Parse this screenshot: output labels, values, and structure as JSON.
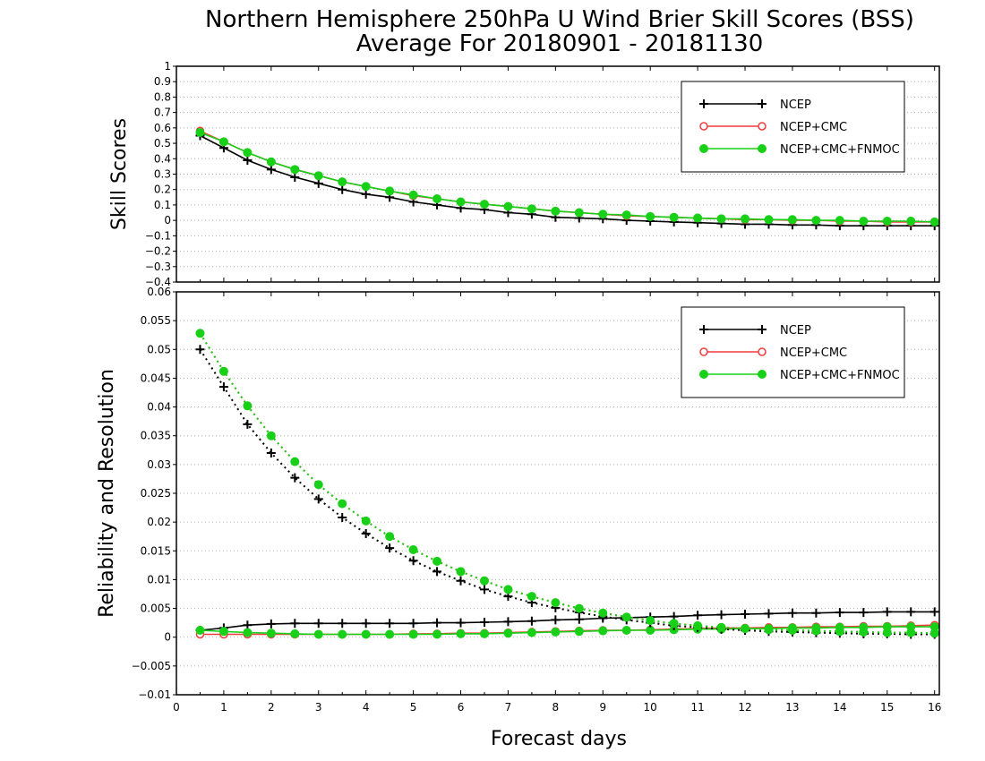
{
  "chart_data": {
    "type": "line",
    "title": "Northern Hemisphere 250hPa U Wind Brier Skill Scores (BSS)",
    "subtitle": "Average For 20180901 - 20181130",
    "xlabel": "Forecast days",
    "xlim": [
      0,
      16.1
    ],
    "xticks": [
      "0",
      "1",
      "2",
      "3",
      "4",
      "5",
      "6",
      "7",
      "8",
      "9",
      "10",
      "11",
      "12",
      "13",
      "14",
      "15",
      "16"
    ],
    "x": [
      0.5,
      1,
      1.5,
      2,
      2.5,
      3,
      3.5,
      4,
      4.5,
      5,
      5.5,
      6,
      6.5,
      7,
      7.5,
      8,
      8.5,
      9,
      9.5,
      10,
      10.5,
      11,
      11.5,
      12,
      12.5,
      13,
      13.5,
      14,
      14.5,
      15,
      15.5,
      16
    ],
    "colors": {
      "NCEP": "#000000",
      "NCEP+CMC": "#f03c3c",
      "NCEP+CMC+FNMOC": "#18d018"
    },
    "panels": [
      {
        "ylabel": "Skill Scores",
        "ylim": [
          -0.4,
          1
        ],
        "yticks": [
          "1",
          "0.9",
          "0.8",
          "0.7",
          "0.6",
          "0.5",
          "0.4",
          "0.3",
          "0.2",
          "0.1",
          "0",
          "−0.1",
          "−0.2",
          "−0.3",
          "−0.4"
        ],
        "grid": true,
        "legend_position": "top-right",
        "legend": [
          "NCEP",
          "NCEP+CMC",
          "NCEP+CMC+FNMOC"
        ],
        "series": [
          {
            "name": "NCEP",
            "marker": "plus",
            "style": "solid",
            "values": [
              0.55,
              0.47,
              0.39,
              0.33,
              0.28,
              0.24,
              0.2,
              0.17,
              0.15,
              0.12,
              0.1,
              0.08,
              0.07,
              0.05,
              0.04,
              0.02,
              0.015,
              0.01,
              0.0,
              -0.005,
              -0.01,
              -0.015,
              -0.02,
              -0.025,
              -0.025,
              -0.03,
              -0.03,
              -0.035,
              -0.035,
              -0.035,
              -0.035,
              -0.035
            ]
          },
          {
            "name": "NCEP+CMC",
            "marker": "circle-open",
            "style": "solid",
            "values": [
              0.58,
              0.51,
              0.44,
              0.38,
              0.33,
              0.29,
              0.25,
              0.22,
              0.19,
              0.16,
              0.14,
              0.12,
              0.105,
              0.09,
              0.075,
              0.06,
              0.05,
              0.04,
              0.03,
              0.025,
              0.02,
              0.015,
              0.01,
              0.005,
              0.005,
              0.0,
              0.0,
              -0.005,
              -0.005,
              -0.01,
              -0.01,
              -0.01
            ]
          },
          {
            "name": "NCEP+CMC+FNMOC",
            "marker": "circle-filled",
            "style": "solid",
            "values": [
              0.57,
              0.51,
              0.44,
              0.38,
              0.33,
              0.29,
              0.25,
              0.22,
              0.19,
              0.165,
              0.14,
              0.12,
              0.105,
              0.09,
              0.075,
              0.06,
              0.05,
              0.04,
              0.035,
              0.025,
              0.02,
              0.015,
              0.01,
              0.01,
              0.005,
              0.005,
              0.0,
              0.0,
              -0.005,
              -0.005,
              -0.005,
              -0.01
            ]
          }
        ]
      },
      {
        "ylabel": "Reliability and Resolution",
        "ylim": [
          -0.01,
          0.06
        ],
        "yticks": [
          "0.06",
          "0.055",
          "0.05",
          "0.045",
          "0.04",
          "0.035",
          "0.03",
          "0.025",
          "0.02",
          "0.015",
          "0.01",
          "0.005",
          "0",
          "−0.005",
          "−0.01"
        ],
        "grid": true,
        "legend_position": "top-right",
        "legend": [
          "NCEP",
          "NCEP+CMC",
          "NCEP+CMC+FNMOC"
        ],
        "series": [
          {
            "name": "NCEP",
            "marker": "plus",
            "style": "solid",
            "measure": "reliability",
            "values": [
              0.0012,
              0.0016,
              0.0021,
              0.0023,
              0.0024,
              0.0024,
              0.0024,
              0.0024,
              0.0024,
              0.0024,
              0.0025,
              0.0025,
              0.0026,
              0.0027,
              0.0028,
              0.003,
              0.0031,
              0.0033,
              0.0034,
              0.0035,
              0.0036,
              0.0038,
              0.0039,
              0.004,
              0.0041,
              0.0042,
              0.0042,
              0.0043,
              0.0043,
              0.0044,
              0.0044,
              0.0044
            ]
          },
          {
            "name": "NCEP+CMC",
            "marker": "circle-open",
            "style": "solid",
            "measure": "reliability",
            "values": [
              0.0005,
              0.0005,
              0.0005,
              0.0005,
              0.0005,
              0.0005,
              0.0005,
              0.0005,
              0.0005,
              0.0006,
              0.0006,
              0.0007,
              0.0007,
              0.0008,
              0.0009,
              0.001,
              0.0011,
              0.0012,
              0.0012,
              0.0013,
              0.0014,
              0.0015,
              0.0016,
              0.0016,
              0.0017,
              0.0017,
              0.0018,
              0.0018,
              0.0019,
              0.0019,
              0.002,
              0.0021
            ]
          },
          {
            "name": "NCEP+CMC+FNMOC",
            "marker": "circle-filled",
            "style": "solid",
            "measure": "reliability",
            "values": [
              0.0012,
              0.001,
              0.0008,
              0.0007,
              0.0006,
              0.0005,
              0.0005,
              0.0005,
              0.0005,
              0.0005,
              0.0005,
              0.0006,
              0.0006,
              0.0007,
              0.0008,
              0.0009,
              0.001,
              0.0011,
              0.0012,
              0.0012,
              0.0013,
              0.0014,
              0.0014,
              0.0015,
              0.0015,
              0.0016,
              0.0016,
              0.0017,
              0.0017,
              0.0018,
              0.0018,
              0.0018
            ]
          },
          {
            "name": "NCEP",
            "marker": "plus",
            "style": "dotted",
            "measure": "resolution",
            "values": [
              0.05,
              0.0435,
              0.037,
              0.032,
              0.0277,
              0.024,
              0.0208,
              0.018,
              0.0155,
              0.0133,
              0.0114,
              0.0098,
              0.0083,
              0.0071,
              0.006,
              0.0051,
              0.0043,
              0.0036,
              0.003,
              0.0025,
              0.002,
              0.0017,
              0.0014,
              0.0012,
              0.001,
              0.0009,
              0.0008,
              0.0007,
              0.0006,
              0.0006,
              0.0005,
              0.0005
            ]
          },
          {
            "name": "NCEP+CMC",
            "marker": "circle-open",
            "style": "dotted",
            "measure": "resolution",
            "values": [
              0.0528,
              0.0462,
              0.0402,
              0.035,
              0.0305,
              0.0265,
              0.0232,
              0.0202,
              0.0175,
              0.0152,
              0.0132,
              0.0114,
              0.0098,
              0.0083,
              0.0071,
              0.006,
              0.005,
              0.0042,
              0.0035,
              0.0029,
              0.0024,
              0.002,
              0.0017,
              0.0015,
              0.0013,
              0.0012,
              0.0011,
              0.001,
              0.0009,
              0.0008,
              0.0008,
              0.0007
            ]
          },
          {
            "name": "NCEP+CMC+FNMOC",
            "marker": "circle-filled",
            "style": "dotted",
            "measure": "resolution",
            "values": [
              0.0528,
              0.0462,
              0.0402,
              0.035,
              0.0305,
              0.0265,
              0.0232,
              0.0202,
              0.0175,
              0.0152,
              0.0132,
              0.0114,
              0.0098,
              0.0083,
              0.0071,
              0.006,
              0.005,
              0.0042,
              0.0035,
              0.0029,
              0.0024,
              0.002,
              0.0017,
              0.0015,
              0.0013,
              0.0012,
              0.0011,
              0.001,
              0.0009,
              0.0008,
              0.0008,
              0.0007
            ]
          }
        ]
      }
    ]
  }
}
